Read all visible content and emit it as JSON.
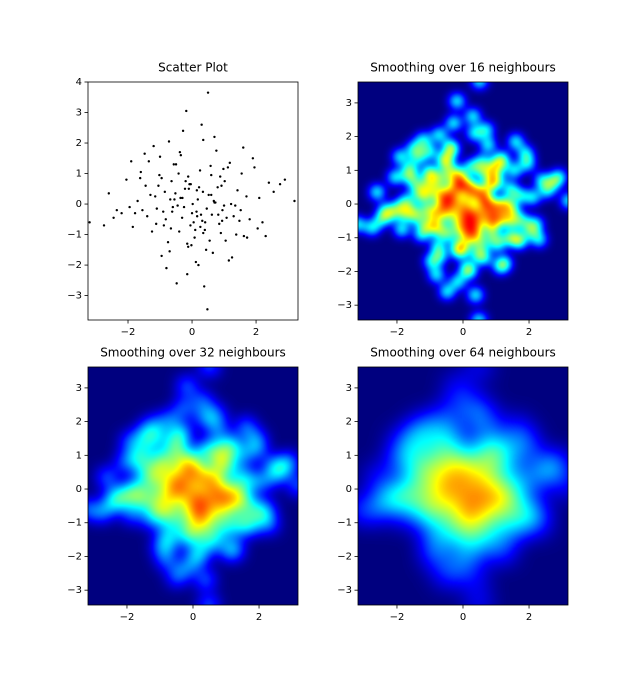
{
  "chart_data": [
    {
      "type": "scatter",
      "title": "Scatter Plot",
      "color": "#000000",
      "x": [
        0.52,
        -0.31,
        1.12,
        -1.45,
        0.08,
        0.73,
        -0.66,
        1.9,
        -2.2,
        0.35,
        -0.12,
        0.95,
        -1.02,
        0.41,
        -0.57,
        1.38,
        -0.85,
        0.2,
        -1.7,
        2.4,
        0.5,
        0.48,
        3.2,
        -3.2,
        -0.9,
        1.6,
        -0.2,
        0.65,
        -1.25,
        0.15,
        -0.45,
        0.88,
        -0.05,
        1.25,
        -1.6,
        0.3,
        -0.75,
        2.1,
        -2.6,
        0.62,
        0.02,
        -0.38,
        1.48,
        -1.1,
        0.8,
        -0.15,
        0.25,
        -0.95,
        1.05,
        -1.85,
        2.75,
        -0.6,
        0.44,
        1.7,
        -0.28,
        0.1,
        -1.35,
        0.92,
        -0.48,
        1.3,
        -2.05,
        0.58,
        -0.1,
        0.35,
        -0.82,
        1.15,
        -1.55,
        0.7,
        2.3,
        -0.35,
        0.0,
        -0.7,
        1.55,
        -1.2,
        0.18,
        -2.45,
        0.85,
        -0.25,
        1.8,
        -0.52,
        0.38,
        -1.05,
        2.9,
        -0.15,
        0.6,
        -1.9,
        1.0,
        -0.4,
        0.22,
        -0.62,
        1.42,
        -0.88,
        0.12,
        -1.4,
        0.76,
        2.05,
        -0.18,
        -1.15,
        0.46,
        0.98,
        -0.3,
        1.62,
        -0.72,
        0.28,
        -2.75,
        0.55,
        -0.08,
        1.22,
        -1.0,
        0.05,
        0.9,
        -0.55,
        1.95,
        -1.3,
        0.32,
        -0.42,
        0.68,
        -1.78,
        1.08,
        -0.02,
        -0.95,
        2.55,
        0.14,
        -0.64,
        1.35,
        -0.22,
        0.82,
        -1.48,
        0.4,
        -2.35,
        1.72,
        -0.12,
        0.6,
        -0.8,
        1.18,
        -0.36,
        0.26,
        -1.62,
        2.2,
        0.7,
        -0.5,
        0.16,
        -1.12,
        1.52,
        -0.04,
        0.94,
        -0.68,
        0.34,
        -1.95,
        1.02
      ],
      "y": [
        0.3,
        -0.45,
        1.2,
        0.6,
        -1.1,
        0.05,
        -0.8,
        1.5,
        -0.3,
        2.1,
        -1.4,
        -0.2,
        0.95,
        -0.6,
        1.3,
        -1.0,
        0.4,
        -2.0,
        0.1,
        0.7,
        3.65,
        -3.45,
        0.1,
        -0.6,
        -0.25,
        1.85,
        0.75,
        -1.6,
        -0.9,
        0.45,
        -0.05,
        0.9,
        -0.7,
        -1.75,
        1.05,
        2.6,
        -1.25,
        0.2,
        0.35,
        -0.35,
        0.0,
        1.7,
        -0.55,
        -0.15,
        0.55,
        -2.3,
        1.1,
        0.85,
        -1.2,
        -0.75,
        0.65,
        -0.1,
        -1.5,
        0.25,
        2.4,
        -0.85,
        1.4,
        0.6,
        -2.6,
        -0.4,
        0.8,
        1.25,
        0.5,
        -0.95,
        -0.5,
        -1.85,
        -0.2,
        2.2,
        -1.05,
        1.6,
        -0.3,
        -1.55,
        1.0,
        1.9,
        0.15,
        -0.45,
        -0.65,
        -0.1,
        -0.5,
        0.35,
        -2.7,
        0.6,
        0.8,
        -1.3,
        0.95,
        1.4,
        -0.05,
        -0.9,
        0.55,
        -0.25,
        0.45,
        -0.7,
        -1.9,
        -0.4,
        1.75,
        -0.8,
        3.05,
        0.25,
        -0.15,
        1.15,
        0.2,
        -1.05,
        2.05,
        -0.35,
        -0.7,
        -1.2,
        0.65,
        0.0,
        1.55,
        -0.6,
        -0.95,
        0.15,
        1.2,
        0.3,
        -0.55,
        1.0,
        0.1,
        -0.3,
        -0.45,
        -1.35,
        -1.7,
        0.4,
        -0.25,
        0.75,
        -0.05,
        0.5,
        -0.35,
        1.65,
        -0.85,
        -0.2,
        -1.1,
        0.9,
        0.3,
        -2.1,
        1.35,
        0.2,
        -0.75,
        0.85,
        -0.6,
        0.05,
        1.3,
        -0.4,
        -0.65,
        -0.2,
        0.65,
        -0.55,
        0.15,
        0.4,
        -0.1,
        0.75
      ],
      "xlim": [
        -3.25,
        3.31
      ],
      "ylim": [
        -3.8,
        4.0
      ],
      "xticks": [
        {
          "value": -2,
          "label": "−2"
        },
        0,
        2
      ],
      "yticks": [
        {
          "value": -3,
          "label": "−3"
        },
        {
          "value": -2,
          "label": "−2"
        },
        {
          "value": -1,
          "label": "−1"
        },
        0,
        1,
        2,
        3,
        4
      ]
    },
    {
      "type": "density",
      "title": "Smoothing over 16 neighbours",
      "colormap": "jet",
      "xlim": [
        -3.18,
        3.18
      ],
      "ylim": [
        -3.44,
        3.62
      ],
      "xticks": [
        {
          "value": -2,
          "label": "−2"
        },
        0,
        2
      ],
      "yticks": [
        {
          "value": -3,
          "label": "−3"
        },
        {
          "value": -2,
          "label": "−2"
        },
        {
          "value": -1,
          "label": "−1"
        },
        0,
        1,
        2,
        3
      ]
    },
    {
      "type": "density",
      "title": "Smoothing over 32 neighbours",
      "colormap": "jet",
      "xlim": [
        -3.18,
        3.18
      ],
      "ylim": [
        -3.44,
        3.62
      ],
      "xticks": [
        {
          "value": -2,
          "label": "−2"
        },
        0,
        2
      ],
      "yticks": [
        {
          "value": -3,
          "label": "−3"
        },
        {
          "value": -2,
          "label": "−2"
        },
        {
          "value": -1,
          "label": "−1"
        },
        0,
        1,
        2,
        3
      ]
    },
    {
      "type": "density",
      "title": "Smoothing over 64 neighbours",
      "colormap": "jet",
      "xlim": [
        -3.18,
        3.18
      ],
      "ylim": [
        -3.44,
        3.62
      ],
      "xticks": [
        {
          "value": -2,
          "label": "−2"
        },
        0,
        2
      ],
      "yticks": [
        {
          "value": -3,
          "label": "−3"
        },
        {
          "value": -2,
          "label": "−2"
        },
        {
          "value": -1,
          "label": "−1"
        },
        0,
        1,
        2,
        3
      ]
    }
  ]
}
